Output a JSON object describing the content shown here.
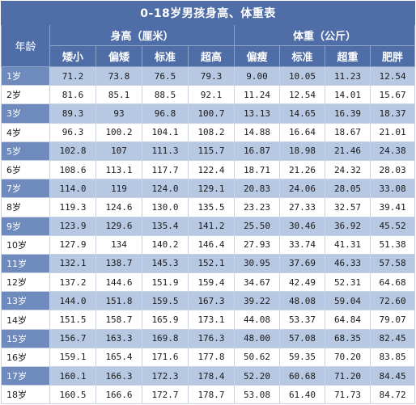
{
  "title": "0-18岁男孩身高、体重表",
  "age_header": "年龄",
  "groups": [
    {
      "label": "身高（厘米）"
    },
    {
      "label": "体重（公斤）"
    }
  ],
  "subheaders": [
    "矮小",
    "偏矮",
    "标准",
    "超高",
    "偏瘦",
    "标准",
    "超重",
    "肥胖"
  ],
  "rows": [
    {
      "age": "1岁",
      "values": [
        "71.2",
        "73.8",
        "76.5",
        "79.3",
        "9.00",
        "10.05",
        "11.23",
        "12.54"
      ]
    },
    {
      "age": "2岁",
      "values": [
        "81.6",
        "85.1",
        "88.5",
        "92.1",
        "11.24",
        "12.54",
        "14.01",
        "15.67"
      ]
    },
    {
      "age": "3岁",
      "values": [
        "89.3",
        "93",
        "96.8",
        "100.7",
        "13.13",
        "14.65",
        "16.39",
        "18.37"
      ]
    },
    {
      "age": "4岁",
      "values": [
        "96.3",
        "100.2",
        "104.1",
        "108.2",
        "14.88",
        "16.64",
        "18.67",
        "21.01"
      ]
    },
    {
      "age": "5岁",
      "values": [
        "102.8",
        "107",
        "111.3",
        "115.7",
        "16.87",
        "18.98",
        "21.46",
        "24.38"
      ]
    },
    {
      "age": "6岁",
      "values": [
        "108.6",
        "113.1",
        "117.7",
        "122.4",
        "18.71",
        "21.26",
        "24.32",
        "28.03"
      ]
    },
    {
      "age": "7岁",
      "values": [
        "114.0",
        "119",
        "124.0",
        "129.1",
        "20.83",
        "24.06",
        "28.05",
        "33.08"
      ]
    },
    {
      "age": "8岁",
      "values": [
        "119.3",
        "124.6",
        "130.0",
        "135.5",
        "23.23",
        "27.33",
        "32.57",
        "39.41"
      ]
    },
    {
      "age": "9岁",
      "values": [
        "123.9",
        "129.6",
        "135.4",
        "141.2",
        "25.50",
        "30.46",
        "36.92",
        "45.52"
      ]
    },
    {
      "age": "10岁",
      "values": [
        "127.9",
        "134",
        "140.2",
        "146.4",
        "27.93",
        "33.74",
        "41.31",
        "51.38"
      ]
    },
    {
      "age": "11岁",
      "values": [
        "132.1",
        "138.7",
        "145.3",
        "152.1",
        "30.95",
        "37.69",
        "46.33",
        "57.58"
      ]
    },
    {
      "age": "12岁",
      "values": [
        "137.2",
        "144.6",
        "151.9",
        "159.4",
        "34.67",
        "42.49",
        "52.31",
        "64.68"
      ]
    },
    {
      "age": "13岁",
      "values": [
        "144.0",
        "151.8",
        "159.5",
        "167.3",
        "39.22",
        "48.08",
        "59.04",
        "72.60"
      ]
    },
    {
      "age": "14岁",
      "values": [
        "151.5",
        "158.7",
        "165.9",
        "173.1",
        "44.08",
        "53.37",
        "64.84",
        "79.07"
      ]
    },
    {
      "age": "15岁",
      "values": [
        "156.7",
        "163.3",
        "169.8",
        "176.3",
        "48.00",
        "57.08",
        "68.35",
        "82.45"
      ]
    },
    {
      "age": "16岁",
      "values": [
        "159.1",
        "165.4",
        "171.6",
        "177.8",
        "50.62",
        "59.35",
        "70.20",
        "83.85"
      ]
    },
    {
      "age": "17岁",
      "values": [
        "160.1",
        "166.3",
        "172.3",
        "178.4",
        "52.20",
        "60.68",
        "71.20",
        "84.45"
      ]
    },
    {
      "age": "18岁",
      "values": [
        "160.5",
        "166.6",
        "172.7",
        "178.7",
        "53.08",
        "61.40",
        "71.73",
        "84.72"
      ]
    }
  ],
  "colors": {
    "header_bg": "#4f6ea8",
    "band_bg": "#b7c8e3",
    "age_band_bg": "#6f8bbd"
  }
}
